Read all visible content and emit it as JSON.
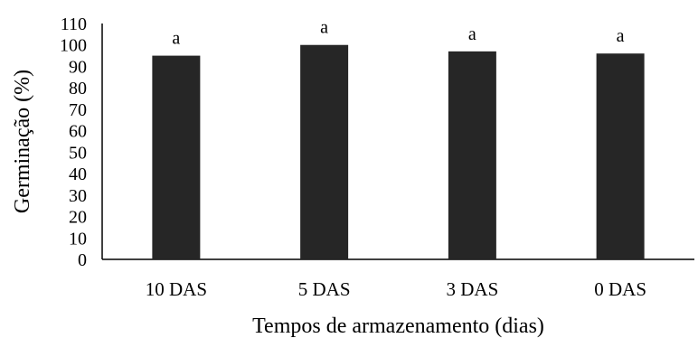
{
  "chart_data": {
    "type": "bar",
    "title": "",
    "xlabel": "Tempos de armazenamento (dias)",
    "ylabel": "Germinação (%)",
    "ylim": [
      0,
      110
    ],
    "yticks": [
      0,
      10,
      20,
      30,
      40,
      50,
      60,
      70,
      80,
      90,
      100,
      110
    ],
    "categories": [
      "10 DAS",
      "5 DAS",
      "3 DAS",
      "0 DAS"
    ],
    "values": [
      95,
      100,
      97,
      96
    ],
    "data_labels": [
      "a",
      "a",
      "a",
      "a"
    ],
    "grid": false,
    "legend": "none",
    "bar_color": "#262626",
    "axis_color": "#000000"
  }
}
